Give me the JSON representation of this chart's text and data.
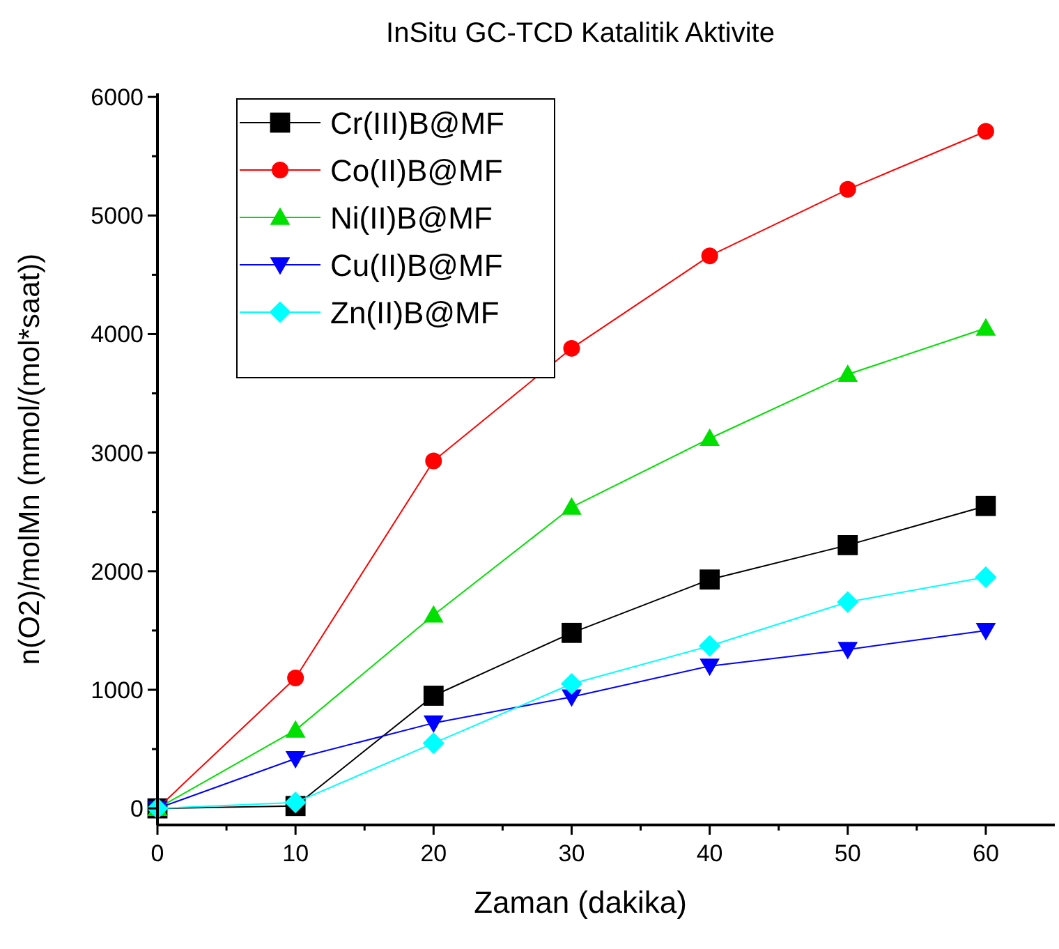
{
  "chart_data": {
    "type": "line",
    "title": "InSitu GC-TCD Katalitik Aktivite",
    "xlabel": "Zaman (dakika)",
    "ylabel": "n(O2)/molMn (mmol/(mol*saat))",
    "x": [
      0,
      10,
      20,
      30,
      40,
      50,
      60
    ],
    "xlim": [
      0,
      65
    ],
    "xticks": [
      0,
      {
        "value": 5,
        "label": null
      },
      10,
      {
        "value": 15,
        "label": null
      },
      20,
      {
        "value": 25,
        "label": null
      },
      30,
      {
        "value": 35,
        "label": null
      },
      40,
      {
        "value": 45,
        "label": null
      },
      50,
      {
        "value": 55,
        "label": null
      },
      60
    ],
    "ylim": [
      -140,
      6030
    ],
    "yticks": [
      0,
      {
        "value": 500,
        "label": null
      },
      1000,
      {
        "value": 1500,
        "label": null
      },
      2000,
      {
        "value": 2500,
        "label": null
      },
      3000,
      {
        "value": 3500,
        "label": null
      },
      4000,
      {
        "value": 4500,
        "label": null
      },
      5000,
      {
        "value": 5500,
        "label": null
      },
      6000
    ],
    "grid": false,
    "legend": "top left",
    "line_style": "solid",
    "series": [
      {
        "name": "Cr(III)B@MF",
        "color": "#000000",
        "marker": "square",
        "values": [
          0,
          20,
          950,
          1480,
          1930,
          2220,
          2550
        ]
      },
      {
        "name": "Co(II)B@MF",
        "color": "#ff0000",
        "marker": "circle",
        "values": [
          0,
          1100,
          2930,
          3880,
          4660,
          5220,
          5710
        ]
      },
      {
        "name": "Ni(II)B@MF",
        "color": "#00e000",
        "marker": "triangle",
        "values": [
          0,
          660,
          1630,
          2540,
          3120,
          3660,
          4050
        ]
      },
      {
        "name": "Cu(II)B@MF",
        "color": "#0000ff",
        "marker": "triangle-down",
        "values": [
          0,
          420,
          720,
          940,
          1200,
          1340,
          1500
        ]
      },
      {
        "name": "Zn(II)B@MF",
        "color": "#00ffff",
        "marker": "diamond",
        "values": [
          0,
          50,
          550,
          1050,
          1370,
          1740,
          1950
        ]
      }
    ]
  }
}
